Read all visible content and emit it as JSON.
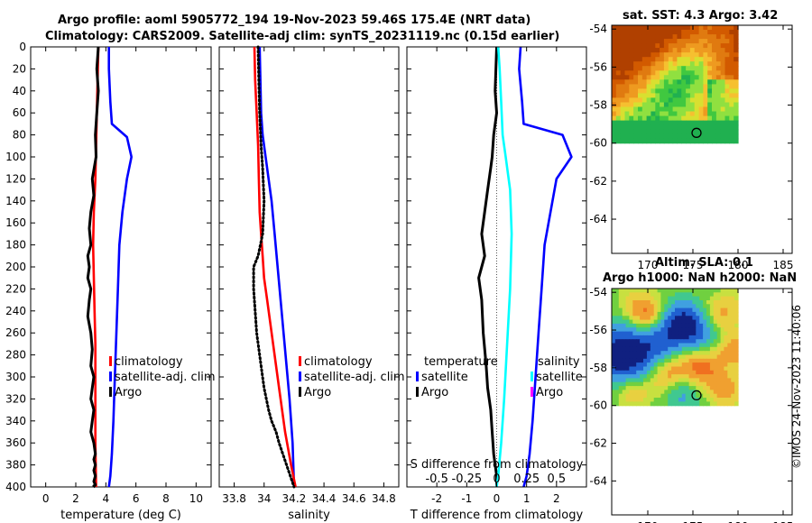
{
  "titles": {
    "line1": "Argo profile: aoml 5905772_194 19-Nov-2023 59.46S 175.4E (NRT data)",
    "line2": "Climatology: CARS2009. Satellite-adj clim: synTS_20231119.nc (0.15d earlier)",
    "sst_title": "sat. SST: 4.3 Argo: 3.42",
    "sla_title1": "Altim. SLA: 0.1",
    "sla_title2": "Argo h1000: NaN h2000: NaN",
    "side_stamp": "©IMOS 24-Nov-2023 11:40:06"
  },
  "colors": {
    "climatology": "#ff0000",
    "satellite": "#0000ff",
    "argo": "#000000",
    "sat_salinity": "#00ffff",
    "argo_salinity": "#ff00ff"
  },
  "chart_data": [
    {
      "type": "line",
      "name": "temperature",
      "xlabel": "temperature (deg C)",
      "ylabel": "depth",
      "xlim": [
        -1,
        11
      ],
      "ylim": [
        400,
        0
      ],
      "xticks": [
        0,
        2,
        4,
        6,
        8,
        10
      ],
      "yticks": [
        0,
        20,
        40,
        60,
        80,
        100,
        120,
        140,
        160,
        180,
        200,
        220,
        240,
        260,
        280,
        300,
        320,
        340,
        360,
        380,
        400
      ],
      "legend": [
        "climatology",
        "satellite-adj. clim",
        "Argo"
      ],
      "series": [
        {
          "name": "climatology",
          "color": "#ff0000",
          "dotted": false,
          "x": [
            3.5,
            3.45,
            3.4,
            3.35,
            3.3,
            3.2,
            3.15,
            3.2,
            3.25,
            3.3,
            3.3,
            3.3,
            3.3,
            3.35
          ],
          "y": [
            0,
            30,
            60,
            90,
            120,
            150,
            180,
            210,
            240,
            270,
            300,
            330,
            360,
            400
          ]
        },
        {
          "name": "satellite-adj. clim",
          "color": "#0000ff",
          "dotted": false,
          "x": [
            4.2,
            4.2,
            4.3,
            4.4,
            5.4,
            5.7,
            5.4,
            5.1,
            4.9,
            4.8,
            4.7,
            4.6,
            4.5,
            4.4,
            4.3,
            4.2
          ],
          "y": [
            0,
            20,
            50,
            70,
            82,
            100,
            120,
            150,
            180,
            220,
            260,
            300,
            340,
            370,
            390,
            400
          ]
        },
        {
          "name": "Argo",
          "color": "#000000",
          "dotted": false,
          "x": [
            3.5,
            3.4,
            3.5,
            3.4,
            3.3,
            3.35,
            3.1,
            3.2,
            3.0,
            2.9,
            3.0,
            2.8,
            2.9,
            2.8,
            3.0,
            2.9,
            2.8,
            3.0,
            3.1,
            3.0,
            3.2,
            3.1,
            3.0,
            3.2,
            3.1,
            3.0,
            3.2,
            3.3,
            3.2,
            3.3,
            3.2,
            3.3,
            3.2,
            3.3,
            3.2,
            3.3
          ],
          "y": [
            0,
            20,
            40,
            60,
            80,
            100,
            120,
            135,
            150,
            165,
            180,
            190,
            200,
            210,
            220,
            230,
            245,
            260,
            275,
            290,
            300,
            310,
            320,
            330,
            340,
            350,
            360,
            370,
            375,
            380,
            385,
            390,
            395,
            398,
            399,
            400
          ]
        }
      ]
    },
    {
      "type": "line",
      "name": "salinity",
      "xlabel": "salinity",
      "ylabel": "",
      "xlim": [
        33.7,
        34.9
      ],
      "ylim": [
        400,
        0
      ],
      "xticks": [
        33.8,
        34,
        34.2,
        34.4,
        34.6,
        34.8
      ],
      "legend": [
        "climatology",
        "satellite-adj. clim",
        "Argo"
      ],
      "series": [
        {
          "name": "climatology",
          "color": "#ff0000",
          "dotted": false,
          "x": [
            33.935,
            33.94,
            33.95,
            33.96,
            33.965,
            33.97,
            33.98,
            33.99,
            34.0,
            34.02,
            34.04,
            34.06,
            34.08,
            34.1,
            34.14,
            34.18,
            34.21
          ],
          "y": [
            0,
            30,
            60,
            90,
            120,
            150,
            170,
            190,
            210,
            230,
            250,
            270,
            290,
            310,
            350,
            380,
            400
          ]
        },
        {
          "name": "satellite-adj. clim",
          "color": "#0000ff",
          "dotted": false,
          "x": [
            33.97,
            33.975,
            33.98,
            33.99,
            34.01,
            34.03,
            34.05,
            34.07,
            34.09,
            34.11,
            34.13,
            34.15,
            34.17,
            34.19,
            34.2
          ],
          "y": [
            0,
            30,
            60,
            80,
            100,
            120,
            140,
            170,
            200,
            230,
            260,
            290,
            320,
            360,
            400
          ]
        },
        {
          "name": "Argo",
          "color": "#000000",
          "dotted": true,
          "x": [
            33.96,
            33.965,
            33.97,
            33.98,
            33.99,
            34.0,
            33.99,
            33.96,
            33.93,
            33.93,
            33.94,
            33.95,
            33.98,
            34.0,
            34.03,
            34.05,
            34.08,
            34.1,
            34.15,
            34.2
          ],
          "y": [
            0,
            30,
            60,
            90,
            110,
            140,
            170,
            190,
            200,
            220,
            240,
            260,
            290,
            310,
            330,
            340,
            350,
            360,
            380,
            400
          ]
        }
      ]
    },
    {
      "type": "line",
      "name": "difference",
      "xlabel": "T difference from climatology",
      "xlabel_top": "S difference from climatology",
      "xlim": [
        -3,
        3
      ],
      "ylim": [
        400,
        0
      ],
      "xticks": [
        -2,
        -1,
        0,
        1,
        2
      ],
      "xtick_labels": [
        "-2",
        "-1",
        "0",
        "1",
        "2"
      ],
      "xticks_top_labels": [
        "-0.5",
        "-0.25",
        "0",
        "0.25",
        "0.5"
      ],
      "legend_temperature": {
        "title": "temperature",
        "items": [
          "satellite",
          "Argo"
        ]
      },
      "legend_salinity": {
        "title": "salinity",
        "items": [
          "satellite",
          "Argo"
        ]
      },
      "series": [
        {
          "name": "temperature satellite",
          "color": "#0000ff",
          "x": [
            0.8,
            0.75,
            0.85,
            0.9,
            2.2,
            2.5,
            2.0,
            1.8,
            1.6,
            1.5,
            1.4,
            1.3,
            1.2,
            1.1,
            1.0,
            0.9
          ],
          "y": [
            0,
            20,
            50,
            70,
            80,
            100,
            120,
            150,
            180,
            220,
            260,
            300,
            340,
            370,
            390,
            400
          ]
        },
        {
          "name": "temperature Argo",
          "color": "#000000",
          "x": [
            0.0,
            -0.05,
            0.0,
            -0.1,
            -0.15,
            -0.2,
            -0.3,
            -0.4,
            -0.5,
            -0.4,
            -0.6,
            -0.5,
            -0.45,
            -0.35,
            -0.3,
            -0.2,
            -0.15,
            -0.1,
            0.0,
            0.0
          ],
          "y": [
            0,
            40,
            60,
            80,
            100,
            110,
            130,
            150,
            170,
            190,
            210,
            230,
            260,
            290,
            310,
            330,
            350,
            370,
            390,
            400
          ]
        },
        {
          "name": "salinity satellite",
          "color": "#00ffff",
          "x": [
            0.05,
            0.1,
            0.15,
            0.2,
            0.3,
            0.45,
            0.5,
            0.45,
            0.35,
            0.25,
            0.15,
            0.05,
            0.0
          ],
          "y": [
            0,
            20,
            50,
            80,
            100,
            130,
            170,
            220,
            270,
            320,
            360,
            390,
            400
          ]
        }
      ]
    },
    {
      "type": "heatmap",
      "name": "sst_map",
      "title": "sat. SST: 4.3 Argo: 3.42",
      "xlim": [
        166,
        186
      ],
      "ylim": [
        -65.8,
        -53.8
      ],
      "xticks": [
        170,
        175,
        180,
        185
      ],
      "yticks": [
        -54,
        -56,
        -58,
        -60,
        -62,
        -64
      ],
      "marker": {
        "lon": 175.4,
        "lat": -59.46
      },
      "data_extent": {
        "lon": [
          166,
          180
        ],
        "lat": [
          -60,
          -53.8
        ]
      }
    },
    {
      "type": "heatmap",
      "name": "sla_map",
      "title": "Altim. SLA: 0.1",
      "xlim": [
        166,
        186
      ],
      "ylim": [
        -65.8,
        -53.8
      ],
      "xticks": [
        170,
        175,
        180,
        185
      ],
      "yticks": [
        -54,
        -56,
        -58,
        -60,
        -62,
        -64
      ],
      "marker": {
        "lon": 175.4,
        "lat": -59.46
      },
      "data_extent": {
        "lon": [
          166,
          180
        ],
        "lat": [
          -60,
          -53.8
        ]
      }
    }
  ]
}
